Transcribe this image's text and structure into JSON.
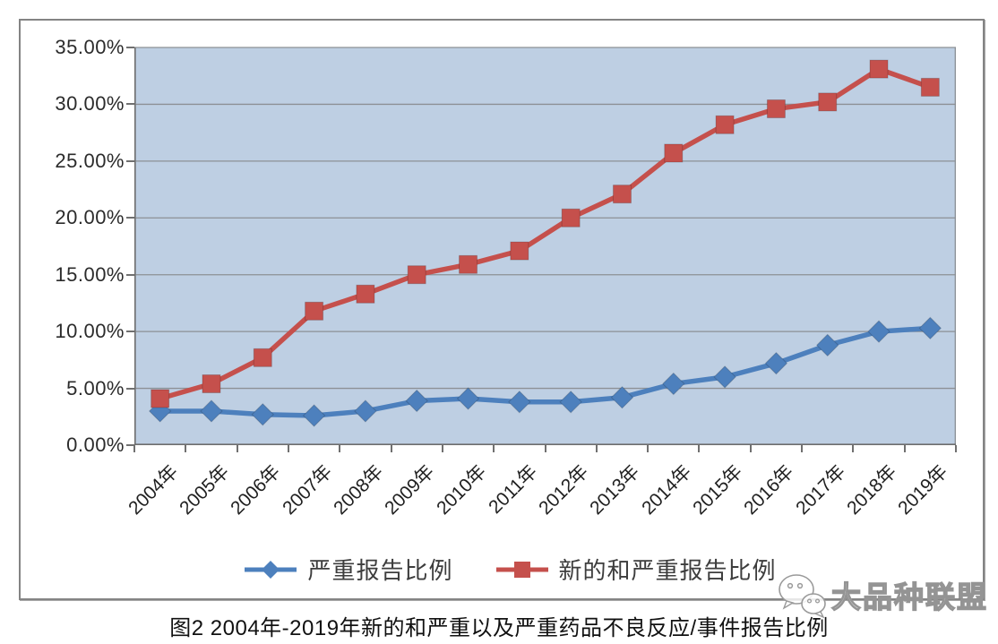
{
  "caption": "图2 2004年-2019年新的和严重以及严重药品不良反应/事件报告比例",
  "watermark": {
    "icon": "wechat-icon",
    "text": "大品种联盟"
  },
  "colors": {
    "plot_bg": "#becfe3",
    "grid": "#8c9095",
    "axis": "#6e6e6e",
    "frame_border": "#848484",
    "series_serious": "#4d80bd",
    "series_new_serious": "#c5504c"
  },
  "chart_data": {
    "type": "line",
    "title": "",
    "xlabel": "",
    "ylabel": "",
    "categories": [
      "2004年",
      "2005年",
      "2006年",
      "2007年",
      "2008年",
      "2009年",
      "2010年",
      "2011年",
      "2012年",
      "2013年",
      "2014年",
      "2015年",
      "2016年",
      "2017年",
      "2018年",
      "2019年"
    ],
    "series": [
      {
        "name": "严重报告比例",
        "marker": "diamond",
        "color": "#4d80bd",
        "values": [
          3.0,
          3.0,
          2.7,
          2.6,
          3.0,
          3.9,
          4.1,
          3.8,
          3.8,
          4.2,
          5.4,
          6.0,
          7.2,
          8.8,
          10.0,
          10.3
        ]
      },
      {
        "name": "新的和严重报告比例",
        "marker": "square",
        "color": "#c5504c",
        "values": [
          4.1,
          5.4,
          7.7,
          11.8,
          13.3,
          15.0,
          15.9,
          17.1,
          20.0,
          22.1,
          25.7,
          28.2,
          29.6,
          30.2,
          33.1,
          31.5
        ]
      }
    ],
    "ylim": [
      0,
      35
    ],
    "ytick_step": 5,
    "ytick_labels": [
      "0.00%",
      "5.00%",
      "10.00%",
      "15.00%",
      "20.00%",
      "25.00%",
      "30.00%",
      "35.00%"
    ],
    "grid": true,
    "legend_position": "bottom"
  }
}
